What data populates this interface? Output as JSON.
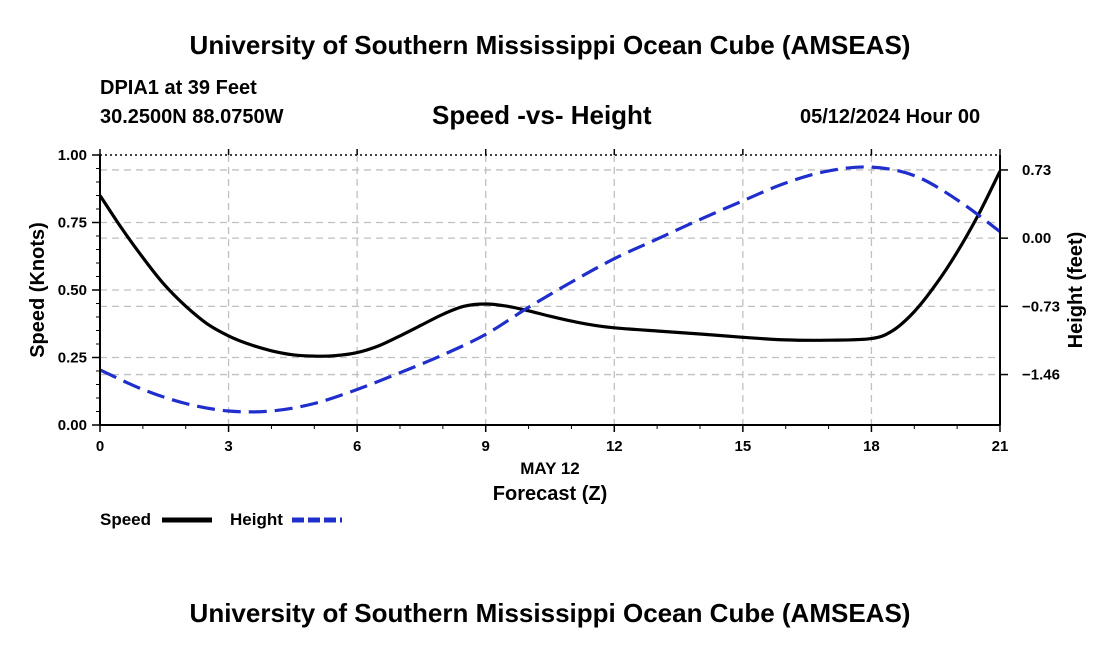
{
  "header": {
    "title": "University of Southern Mississippi Ocean Cube (AMSEAS)",
    "station": "DPIA1 at 39 Feet",
    "coords": "30.2500N  88.0750W",
    "subtitle": "Speed -vs- Height",
    "datetime": "05/12/2024 Hour 00"
  },
  "footer": {
    "title": "University of Southern Mississippi Ocean Cube (AMSEAS)"
  },
  "chart_data": {
    "type": "line",
    "title": "Speed -vs- Height",
    "xlabel": "Forecast (Z)",
    "xsublabel": "MAY 12",
    "ylabel": "Speed (Knots)",
    "y2label": "Height (feet)",
    "xlim": [
      0,
      21
    ],
    "ylim": [
      0,
      1
    ],
    "y2lim": [
      -2.0,
      0.89
    ],
    "x_ticks": [
      0,
      3,
      6,
      9,
      12,
      15,
      18,
      21
    ],
    "x_tick_labels": [
      "0",
      "3",
      "6",
      "9",
      "12",
      "15",
      "18",
      "21"
    ],
    "y_ticks": [
      0,
      0.25,
      0.5,
      0.75,
      1.0
    ],
    "y_tick_labels": [
      "0.00",
      "0.25",
      "0.50",
      "0.75",
      "1.00"
    ],
    "y2_ticks": [
      0.73,
      0.0,
      -0.73,
      -1.46
    ],
    "y2_tick_labels": [
      "0.73",
      "0.00",
      "−0.73",
      "−1.46"
    ],
    "grid": true,
    "series": [
      {
        "name": "Speed",
        "axis": "left",
        "color": "#000000",
        "dash": "solid",
        "x": [
          0,
          0.5,
          1,
          1.5,
          2,
          2.5,
          3,
          3.5,
          4,
          4.5,
          5,
          5.5,
          6,
          6.5,
          7,
          7.5,
          8,
          8.5,
          9,
          9.5,
          10,
          10.5,
          11,
          11.5,
          12,
          13,
          14,
          15,
          16,
          17,
          18,
          18.5,
          19,
          19.5,
          20,
          20.5,
          21
        ],
        "values": [
          0.85,
          0.73,
          0.62,
          0.52,
          0.44,
          0.375,
          0.33,
          0.298,
          0.275,
          0.26,
          0.255,
          0.257,
          0.268,
          0.293,
          0.33,
          0.37,
          0.41,
          0.44,
          0.448,
          0.44,
          0.423,
          0.403,
          0.385,
          0.37,
          0.36,
          0.348,
          0.337,
          0.325,
          0.315,
          0.314,
          0.32,
          0.35,
          0.42,
          0.52,
          0.64,
          0.78,
          0.94
        ]
      },
      {
        "name": "Height",
        "axis": "right",
        "color": "#1f2ecc",
        "dash": "dashed",
        "x": [
          0,
          1,
          2,
          3,
          4,
          5,
          6,
          7,
          8,
          9,
          10,
          11,
          12,
          13,
          14,
          15,
          16,
          17,
          18,
          19,
          20,
          21
        ],
        "values": [
          -1.41,
          -1.62,
          -1.77,
          -1.85,
          -1.85,
          -1.77,
          -1.62,
          -1.44,
          -1.25,
          -1.03,
          -0.74,
          -0.47,
          -0.22,
          -0.01,
          0.2,
          0.4,
          0.59,
          0.72,
          0.76,
          0.67,
          0.41,
          0.07
        ]
      }
    ],
    "legend": {
      "position": "bottom-left",
      "speed_label": "Speed",
      "height_label": "Height"
    }
  }
}
